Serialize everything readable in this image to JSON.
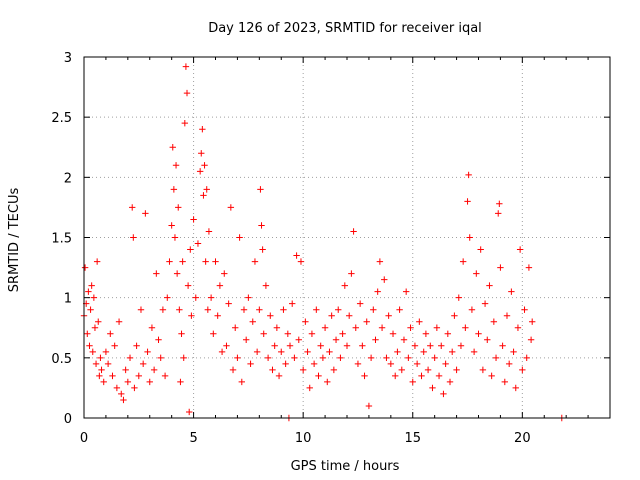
{
  "chart_data": {
    "type": "scatter",
    "title": "Day 126 of 2023, SRMTID for receiver iqal",
    "xlabel": "GPS time / hours",
    "ylabel": "SRMTID / TECUs",
    "xlim": [
      0,
      24
    ],
    "ylim": [
      0,
      3
    ],
    "xticks": [
      0,
      5,
      10,
      15,
      20
    ],
    "yticks": [
      0,
      0.5,
      1,
      1.5,
      2,
      2.5,
      3
    ],
    "grid": true,
    "marker": "plus",
    "series_color": "#ff0000",
    "series": [
      {
        "name": "SRMTID",
        "points": [
          [
            0.0,
            0.85
          ],
          [
            0.05,
            1.25
          ],
          [
            0.1,
            0.95
          ],
          [
            0.15,
            0.7
          ],
          [
            0.2,
            1.05
          ],
          [
            0.25,
            0.6
          ],
          [
            0.3,
            0.9
          ],
          [
            0.35,
            1.1
          ],
          [
            0.4,
            0.55
          ],
          [
            0.45,
            1.0
          ],
          [
            0.5,
            0.75
          ],
          [
            0.55,
            0.45
          ],
          [
            0.6,
            1.3
          ],
          [
            0.65,
            0.8
          ],
          [
            0.7,
            0.35
          ],
          [
            0.75,
            0.5
          ],
          [
            0.8,
            0.4
          ],
          [
            0.9,
            0.3
          ],
          [
            1.0,
            0.55
          ],
          [
            1.1,
            0.45
          ],
          [
            1.2,
            0.7
          ],
          [
            1.3,
            0.35
          ],
          [
            1.4,
            0.6
          ],
          [
            1.5,
            0.25
          ],
          [
            1.6,
            0.8
          ],
          [
            1.7,
            0.2
          ],
          [
            1.8,
            0.15
          ],
          [
            1.9,
            0.4
          ],
          [
            2.0,
            0.3
          ],
          [
            2.1,
            0.5
          ],
          [
            2.2,
            1.75
          ],
          [
            2.25,
            1.5
          ],
          [
            2.3,
            0.25
          ],
          [
            2.4,
            0.6
          ],
          [
            2.5,
            0.35
          ],
          [
            2.6,
            0.9
          ],
          [
            2.7,
            0.45
          ],
          [
            2.8,
            1.7
          ],
          [
            2.9,
            0.55
          ],
          [
            3.0,
            0.3
          ],
          [
            3.1,
            0.75
          ],
          [
            3.2,
            0.4
          ],
          [
            3.3,
            1.2
          ],
          [
            3.4,
            0.65
          ],
          [
            3.5,
            0.5
          ],
          [
            3.6,
            0.9
          ],
          [
            3.7,
            0.35
          ],
          [
            3.8,
            1.0
          ],
          [
            3.9,
            1.3
          ],
          [
            4.0,
            1.6
          ],
          [
            4.05,
            2.25
          ],
          [
            4.1,
            1.9
          ],
          [
            4.15,
            1.5
          ],
          [
            4.2,
            2.1
          ],
          [
            4.25,
            1.2
          ],
          [
            4.3,
            1.75
          ],
          [
            4.35,
            0.9
          ],
          [
            4.4,
            0.3
          ],
          [
            4.45,
            0.7
          ],
          [
            4.5,
            1.3
          ],
          [
            4.55,
            0.5
          ],
          [
            4.6,
            2.45
          ],
          [
            4.65,
            2.92
          ],
          [
            4.7,
            2.7
          ],
          [
            4.75,
            1.1
          ],
          [
            4.8,
            0.05
          ],
          [
            4.85,
            1.4
          ],
          [
            4.9,
            0.85
          ],
          [
            5.0,
            1.65
          ],
          [
            5.1,
            1.0
          ],
          [
            5.2,
            1.45
          ],
          [
            5.3,
            2.05
          ],
          [
            5.35,
            2.2
          ],
          [
            5.4,
            2.4
          ],
          [
            5.45,
            1.85
          ],
          [
            5.5,
            2.1
          ],
          [
            5.55,
            1.3
          ],
          [
            5.6,
            1.9
          ],
          [
            5.65,
            0.9
          ],
          [
            5.7,
            1.55
          ],
          [
            5.8,
            1.0
          ],
          [
            5.9,
            0.7
          ],
          [
            6.0,
            1.3
          ],
          [
            6.1,
            0.85
          ],
          [
            6.2,
            1.1
          ],
          [
            6.3,
            0.55
          ],
          [
            6.4,
            1.2
          ],
          [
            6.5,
            0.6
          ],
          [
            6.6,
            0.95
          ],
          [
            6.7,
            1.75
          ],
          [
            6.8,
            0.4
          ],
          [
            6.9,
            0.75
          ],
          [
            7.0,
            0.5
          ],
          [
            7.1,
            1.5
          ],
          [
            7.2,
            0.3
          ],
          [
            7.3,
            0.9
          ],
          [
            7.4,
            0.65
          ],
          [
            7.5,
            1.0
          ],
          [
            7.6,
            0.45
          ],
          [
            7.7,
            0.8
          ],
          [
            7.8,
            1.3
          ],
          [
            7.9,
            0.55
          ],
          [
            8.0,
            0.9
          ],
          [
            8.05,
            1.9
          ],
          [
            8.1,
            1.6
          ],
          [
            8.15,
            1.4
          ],
          [
            8.2,
            0.7
          ],
          [
            8.3,
            1.1
          ],
          [
            8.4,
            0.5
          ],
          [
            8.5,
            0.85
          ],
          [
            8.6,
            0.4
          ],
          [
            8.7,
            0.6
          ],
          [
            8.8,
            0.75
          ],
          [
            8.9,
            0.35
          ],
          [
            9.0,
            0.55
          ],
          [
            9.1,
            0.9
          ],
          [
            9.2,
            0.45
          ],
          [
            9.3,
            0.7
          ],
          [
            9.35,
            0.0
          ],
          [
            9.4,
            0.6
          ],
          [
            9.5,
            0.95
          ],
          [
            9.6,
            0.5
          ],
          [
            9.7,
            1.35
          ],
          [
            9.8,
            0.65
          ],
          [
            9.9,
            1.3
          ],
          [
            10.0,
            0.4
          ],
          [
            10.1,
            0.8
          ],
          [
            10.2,
            0.55
          ],
          [
            10.3,
            0.25
          ],
          [
            10.4,
            0.7
          ],
          [
            10.5,
            0.45
          ],
          [
            10.6,
            0.9
          ],
          [
            10.7,
            0.35
          ],
          [
            10.8,
            0.6
          ],
          [
            10.9,
            0.5
          ],
          [
            11.0,
            0.75
          ],
          [
            11.1,
            0.3
          ],
          [
            11.2,
            0.55
          ],
          [
            11.3,
            0.85
          ],
          [
            11.4,
            0.4
          ],
          [
            11.5,
            0.65
          ],
          [
            11.6,
            0.9
          ],
          [
            11.7,
            0.5
          ],
          [
            11.8,
            0.7
          ],
          [
            11.9,
            1.1
          ],
          [
            12.0,
            0.6
          ],
          [
            12.1,
            0.85
          ],
          [
            12.2,
            1.2
          ],
          [
            12.3,
            1.55
          ],
          [
            12.4,
            0.75
          ],
          [
            12.5,
            0.45
          ],
          [
            12.6,
            0.95
          ],
          [
            12.7,
            0.6
          ],
          [
            12.8,
            0.35
          ],
          [
            12.9,
            0.8
          ],
          [
            13.0,
            0.1
          ],
          [
            13.1,
            0.5
          ],
          [
            13.2,
            0.9
          ],
          [
            13.3,
            0.65
          ],
          [
            13.4,
            1.05
          ],
          [
            13.5,
            1.3
          ],
          [
            13.6,
            0.75
          ],
          [
            13.7,
            1.15
          ],
          [
            13.8,
            0.5
          ],
          [
            13.9,
            0.85
          ],
          [
            14.0,
            0.45
          ],
          [
            14.1,
            0.7
          ],
          [
            14.2,
            0.35
          ],
          [
            14.3,
            0.55
          ],
          [
            14.4,
            0.9
          ],
          [
            14.5,
            0.4
          ],
          [
            14.6,
            0.65
          ],
          [
            14.7,
            1.05
          ],
          [
            14.8,
            0.5
          ],
          [
            14.9,
            0.75
          ],
          [
            15.0,
            0.3
          ],
          [
            15.1,
            0.6
          ],
          [
            15.2,
            0.45
          ],
          [
            15.3,
            0.8
          ],
          [
            15.4,
            0.35
          ],
          [
            15.5,
            0.55
          ],
          [
            15.6,
            0.7
          ],
          [
            15.7,
            0.4
          ],
          [
            15.8,
            0.6
          ],
          [
            15.9,
            0.25
          ],
          [
            16.0,
            0.5
          ],
          [
            16.1,
            0.75
          ],
          [
            16.2,
            0.35
          ],
          [
            16.3,
            0.6
          ],
          [
            16.4,
            0.2
          ],
          [
            16.5,
            0.45
          ],
          [
            16.6,
            0.7
          ],
          [
            16.7,
            0.3
          ],
          [
            16.8,
            0.55
          ],
          [
            16.9,
            0.85
          ],
          [
            17.0,
            0.4
          ],
          [
            17.1,
            1.0
          ],
          [
            17.2,
            0.6
          ],
          [
            17.3,
            1.3
          ],
          [
            17.4,
            0.75
          ],
          [
            17.5,
            1.8
          ],
          [
            17.55,
            2.02
          ],
          [
            17.6,
            1.5
          ],
          [
            17.7,
            0.9
          ],
          [
            17.8,
            0.55
          ],
          [
            17.9,
            1.2
          ],
          [
            18.0,
            0.7
          ],
          [
            18.1,
            1.4
          ],
          [
            18.2,
            0.4
          ],
          [
            18.3,
            0.95
          ],
          [
            18.4,
            0.65
          ],
          [
            18.5,
            1.1
          ],
          [
            18.6,
            0.35
          ],
          [
            18.7,
            0.8
          ],
          [
            18.8,
            0.5
          ],
          [
            18.9,
            1.7
          ],
          [
            18.95,
            1.78
          ],
          [
            19.0,
            1.25
          ],
          [
            19.1,
            0.6
          ],
          [
            19.2,
            0.3
          ],
          [
            19.3,
            0.85
          ],
          [
            19.4,
            0.45
          ],
          [
            19.5,
            1.05
          ],
          [
            19.6,
            0.55
          ],
          [
            19.7,
            0.25
          ],
          [
            19.8,
            0.75
          ],
          [
            19.9,
            1.4
          ],
          [
            20.0,
            0.4
          ],
          [
            20.1,
            0.9
          ],
          [
            20.2,
            0.5
          ],
          [
            20.3,
            1.25
          ],
          [
            20.4,
            0.65
          ],
          [
            20.45,
            0.8
          ],
          [
            21.8,
            0.0
          ]
        ]
      }
    ]
  }
}
